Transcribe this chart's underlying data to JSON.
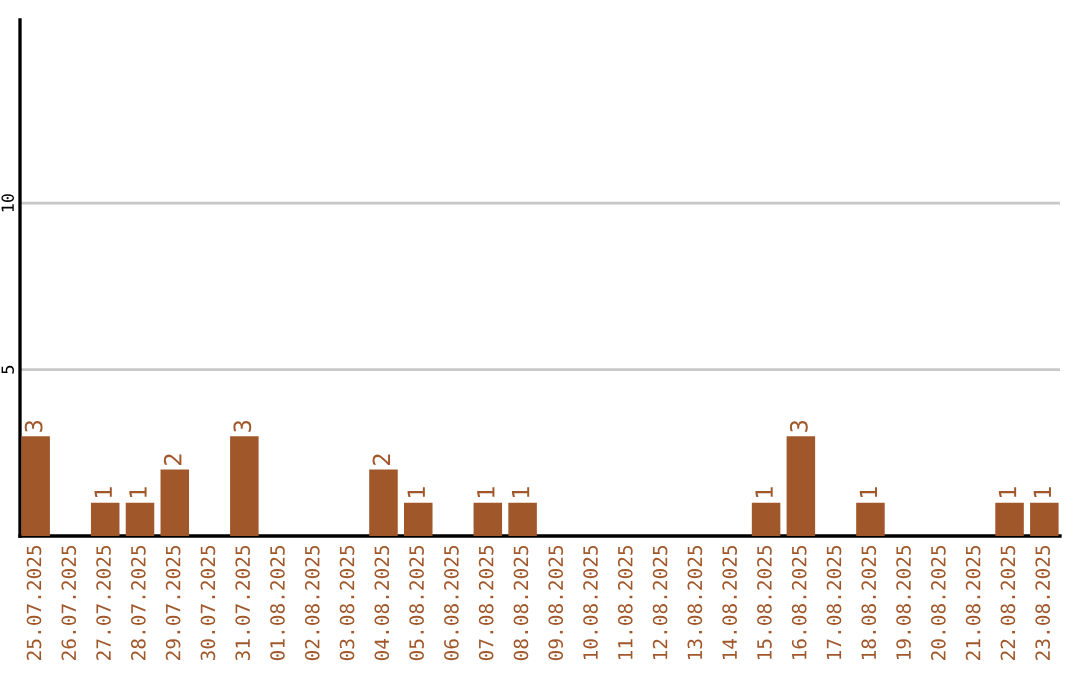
{
  "chart_data": {
    "type": "bar",
    "categories": [
      "25.07.2025",
      "26.07.2025",
      "27.07.2025",
      "28.07.2025",
      "29.07.2025",
      "30.07.2025",
      "31.07.2025",
      "01.08.2025",
      "02.08.2025",
      "03.08.2025",
      "04.08.2025",
      "05.08.2025",
      "06.08.2025",
      "07.08.2025",
      "08.08.2025",
      "09.08.2025",
      "10.08.2025",
      "11.08.2025",
      "12.08.2025",
      "13.08.2025",
      "14.08.2025",
      "15.08.2025",
      "16.08.2025",
      "17.08.2025",
      "18.08.2025",
      "19.08.2025",
      "20.08.2025",
      "21.08.2025",
      "22.08.2025",
      "23.08.2025"
    ],
    "values": [
      3,
      0,
      1,
      1,
      2,
      0,
      3,
      0,
      0,
      0,
      2,
      1,
      0,
      1,
      1,
      0,
      0,
      0,
      0,
      0,
      0,
      1,
      3,
      0,
      1,
      0,
      0,
      0,
      1,
      1
    ],
    "value_labels": [
      "3",
      null,
      "1",
      "1",
      "2",
      null,
      "3",
      null,
      null,
      null,
      "2",
      "1",
      null,
      "1",
      "1",
      null,
      null,
      null,
      null,
      null,
      null,
      "1",
      "3",
      null,
      "1",
      null,
      null,
      null,
      "1",
      "1"
    ],
    "color": "#a0572a",
    "ylim": [
      0,
      15.5
    ],
    "yticks": [
      5,
      10
    ],
    "grid": "y"
  }
}
